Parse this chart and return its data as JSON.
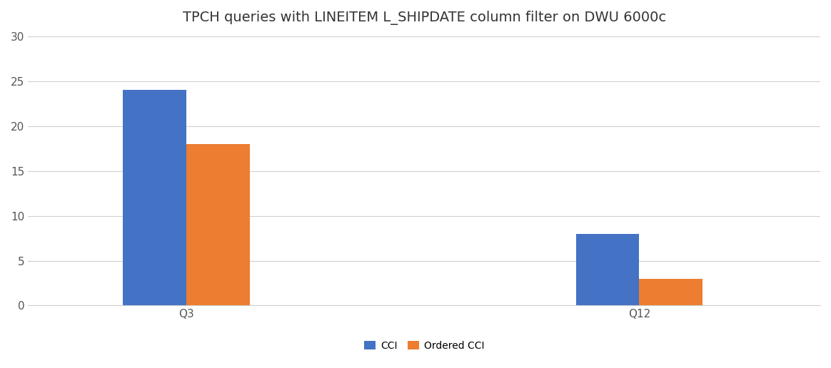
{
  "title": "TPCH queries with LINEITEM L_SHIPDATE column filter on DWU 6000c",
  "categories": [
    "Q3",
    "Q12"
  ],
  "cci_values": [
    24,
    8
  ],
  "ordered_cci_values": [
    18,
    3
  ],
  "cci_color": "#4472C4",
  "ordered_cci_color": "#ED7D31",
  "ylim": [
    0,
    30
  ],
  "yticks": [
    0,
    5,
    10,
    15,
    20,
    25,
    30
  ],
  "legend_labels": [
    "CCI",
    "Ordered CCI"
  ],
  "bar_width": 0.28,
  "group_positions": [
    1.0,
    3.0
  ],
  "xlim": [
    0.3,
    3.8
  ],
  "background_color": "#ffffff",
  "grid_color": "#d0d0d0",
  "title_fontsize": 14,
  "label_fontsize": 11,
  "legend_fontsize": 10
}
